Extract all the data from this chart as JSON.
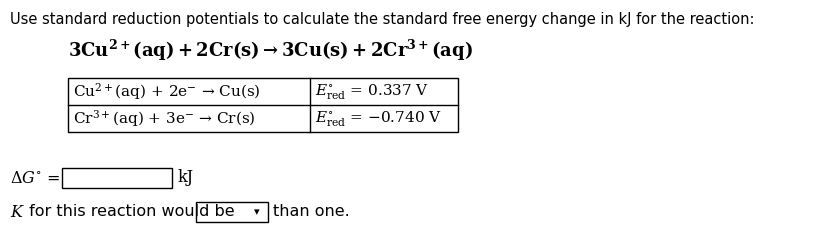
{
  "background_color": "#ffffff",
  "title_text": "Use standard reduction potentials to calculate the standard free energy change in kJ for the reaction:",
  "row1_left": "Cu$^{2+}$(aq) + 2e$^{-}$ → Cu(s)",
  "row1_Ered": "$E^{\\circ}_{\\mathrm{red}}$",
  "row1_val": "= 0.337 V",
  "row2_left": "Cr$^{3+}$(aq) + 3e$^{-}$ → Cr(s)",
  "row2_Ered": "$E^{\\circ}_{\\mathrm{red}}$",
  "row2_val": "= −0.740 V",
  "delta_g_label": "$\\Delta G^{\\circ}$ =",
  "delta_g_unit": "kJ",
  "k_italic": "$K$",
  "k_text_before": " for this reaction would be",
  "k_text_after": "than one.",
  "text_color": "#000000",
  "box_color": "#000000",
  "input_box_color": "#ffffff",
  "font_size_title": 10.5,
  "font_size_body": 11.5,
  "font_size_reaction": 13.0,
  "font_size_table": 11.0
}
